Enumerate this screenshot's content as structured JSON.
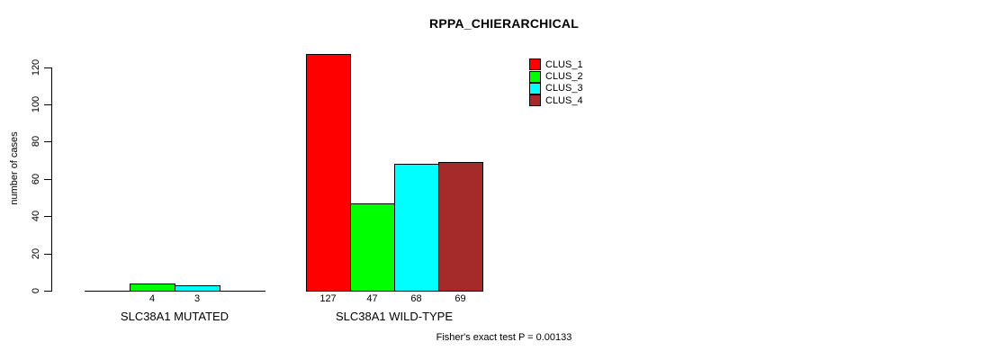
{
  "chart_data": {
    "type": "bar",
    "title": "RPPA_CHIERARCHICAL",
    "ylabel": "number of cases",
    "xlabel": "",
    "categories": [
      "SLC38A1 MUTATED",
      "SLC38A1 WILD-TYPE"
    ],
    "series": [
      {
        "name": "CLUS_1",
        "color": "#FF0000",
        "values": [
          0,
          127
        ]
      },
      {
        "name": "CLUS_2",
        "color": "#00FF00",
        "values": [
          4,
          47
        ]
      },
      {
        "name": "CLUS_3",
        "color": "#00FFFF",
        "values": [
          3,
          68
        ]
      },
      {
        "name": "CLUS_4",
        "color": "#A52A2A",
        "values": [
          0,
          69
        ]
      }
    ],
    "bar_value_labels": [
      [
        "",
        "4",
        "3",
        ""
      ],
      [
        "127",
        "47",
        "68",
        "69"
      ]
    ],
    "yticks": [
      0,
      20,
      40,
      60,
      80,
      100,
      120
    ],
    "ylim": [
      0,
      127
    ],
    "grid": false,
    "legend_position": "top-right",
    "legend_entries": [
      "CLUS_1",
      "CLUS_2",
      "CLUS_3",
      "CLUS_4"
    ],
    "annotation": "Fisher's exact test P = 0.00133"
  }
}
